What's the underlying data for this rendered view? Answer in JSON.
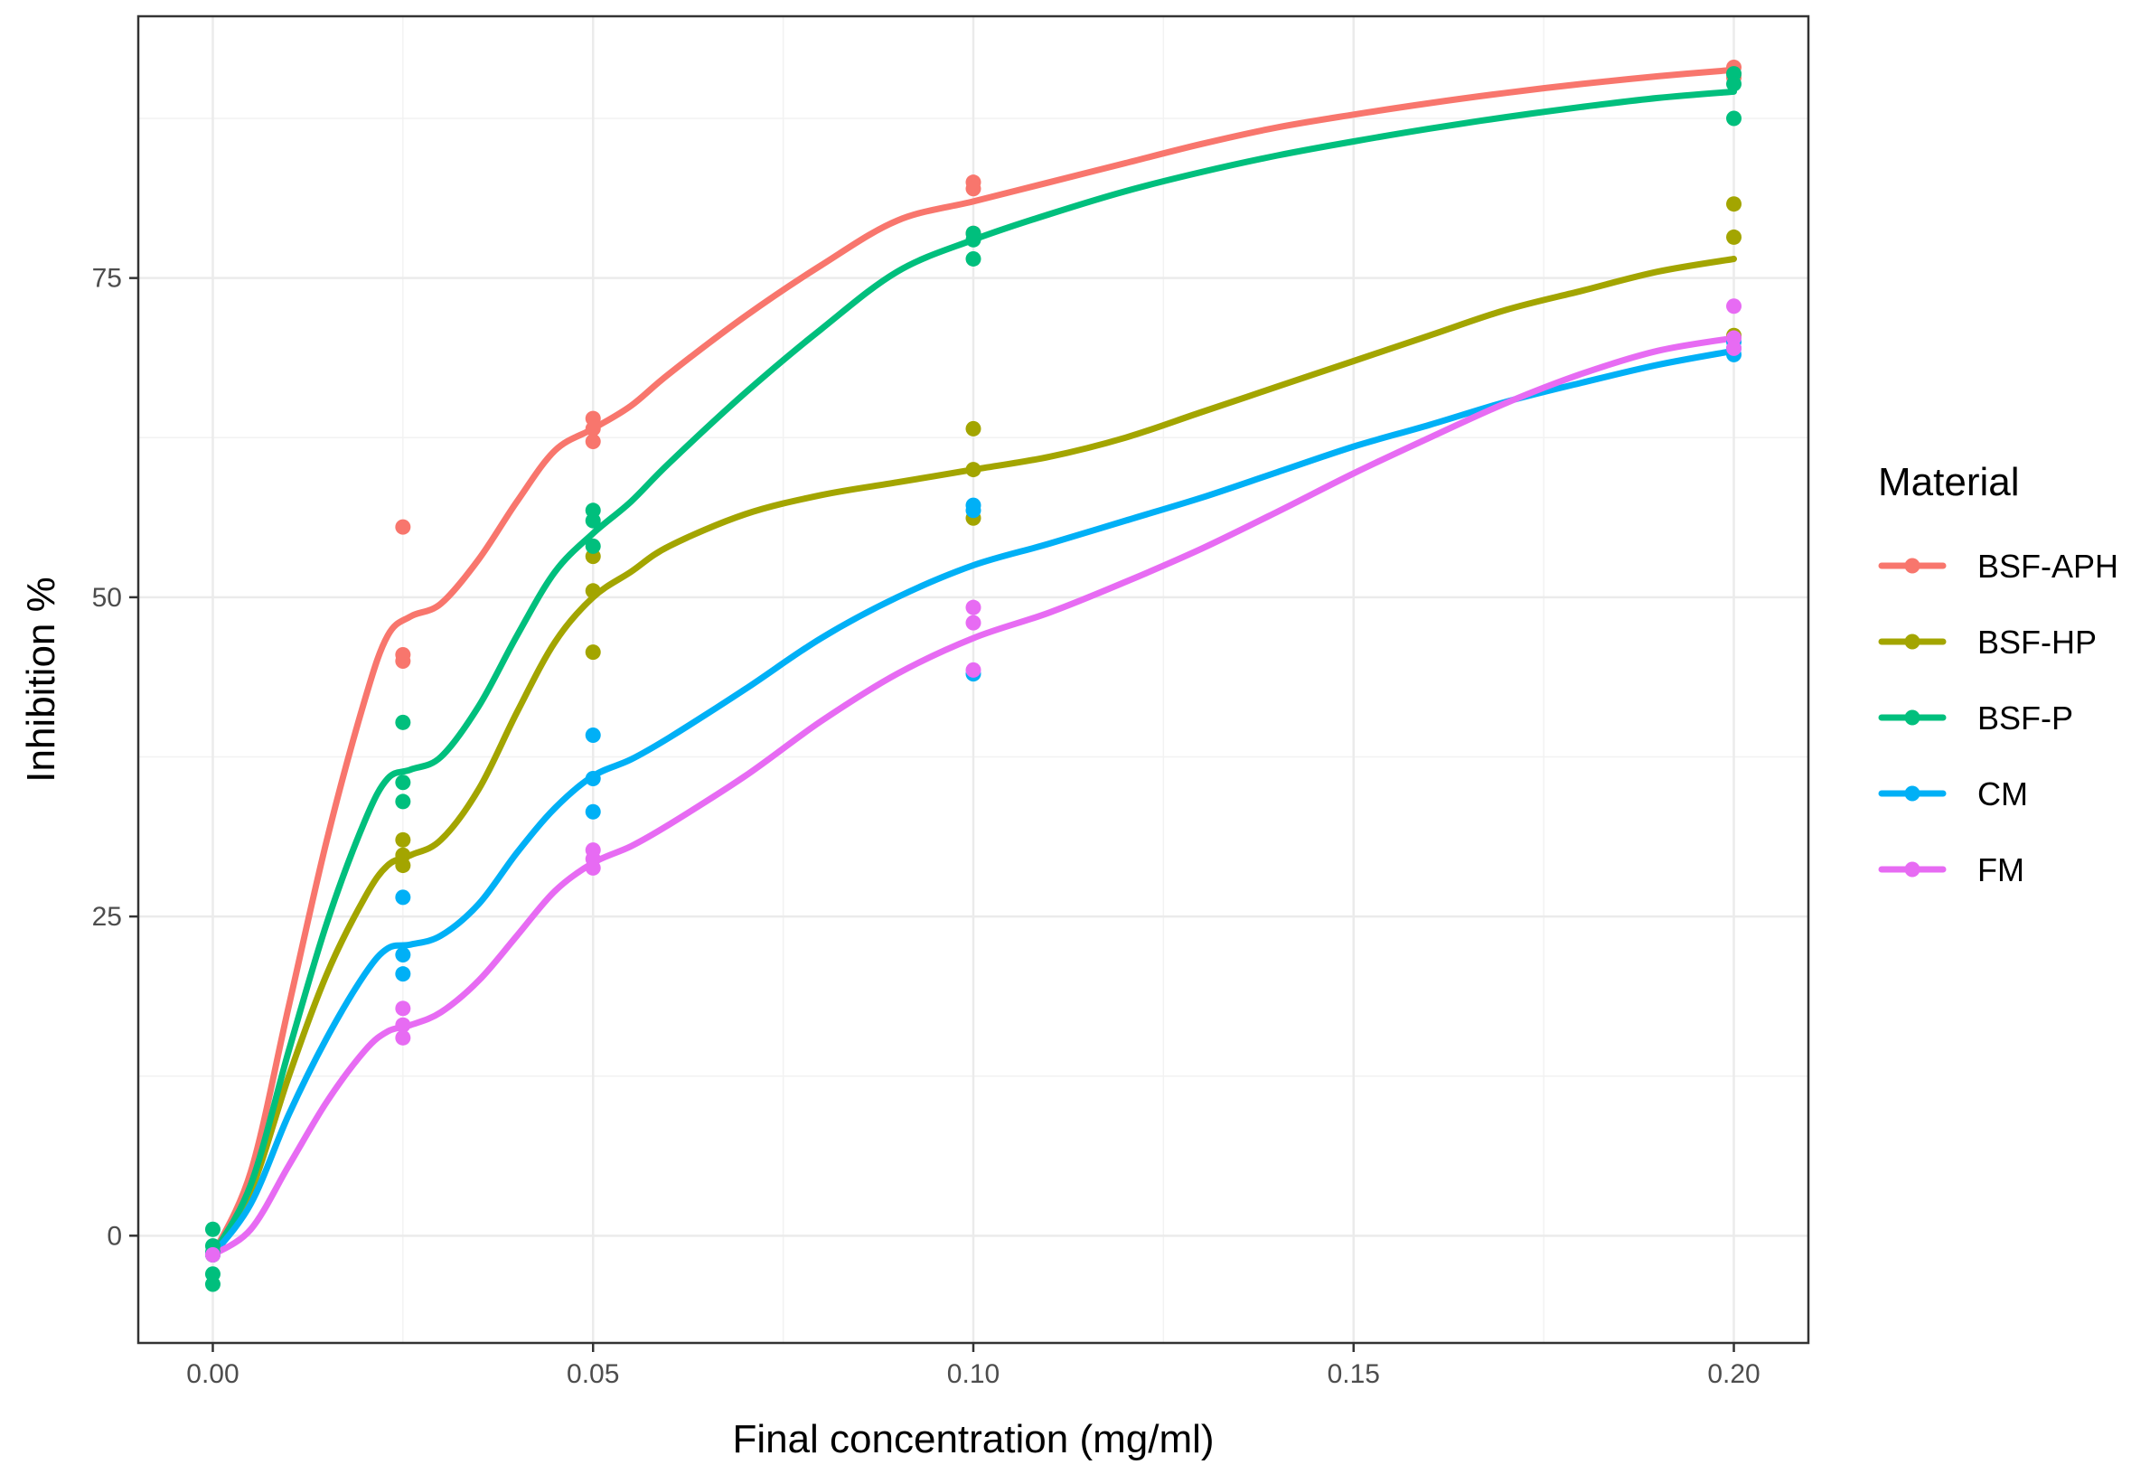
{
  "chart_data": {
    "type": "scatter",
    "title": "",
    "xlabel": "Final concentration (mg/ml)",
    "ylabel": "Inhibition %",
    "xlim": [
      -0.0098,
      0.2098
    ],
    "ylim": [
      -8.4,
      95.5
    ],
    "x_ticks": [
      0.0,
      0.05,
      0.1,
      0.15,
      0.2
    ],
    "x_tick_labels": [
      "0.00",
      "0.05",
      "0.10",
      "0.15",
      "0.20"
    ],
    "y_ticks": [
      0,
      25,
      50,
      75
    ],
    "y_tick_labels": [
      "0",
      "25",
      "50",
      "75"
    ],
    "x_minor": [
      0.025,
      0.075,
      0.125,
      0.175
    ],
    "y_minor": [
      12.5,
      37.5,
      62.5,
      87.5
    ],
    "grid": true,
    "legend": {
      "title": "Material",
      "position": "right"
    },
    "series": [
      {
        "name": "BSF-APH",
        "color": "#F8766D",
        "points": [
          [
            0,
            -1.5
          ],
          [
            0.025,
            55.5
          ],
          [
            0.025,
            45.5
          ],
          [
            0.025,
            45.0
          ],
          [
            0.05,
            64.0
          ],
          [
            0.05,
            63.2
          ],
          [
            0.05,
            62.2
          ],
          [
            0.1,
            82.5
          ],
          [
            0.1,
            82.0
          ],
          [
            0.1,
            78.5
          ],
          [
            0.2,
            91.5
          ],
          [
            0.2,
            91.0
          ],
          [
            0.2,
            90.7
          ]
        ],
        "smooth": [
          [
            0,
            -1.5
          ],
          [
            0.005,
            5.0
          ],
          [
            0.01,
            18.0
          ],
          [
            0.015,
            31.0
          ],
          [
            0.02,
            42.0
          ],
          [
            0.023,
            47.0
          ],
          [
            0.026,
            48.5
          ],
          [
            0.03,
            49.5
          ],
          [
            0.035,
            53.0
          ],
          [
            0.04,
            57.5
          ],
          [
            0.045,
            61.5
          ],
          [
            0.05,
            63.2
          ],
          [
            0.055,
            65.0
          ],
          [
            0.06,
            67.5
          ],
          [
            0.07,
            72.0
          ],
          [
            0.08,
            76.0
          ],
          [
            0.09,
            79.5
          ],
          [
            0.1,
            81.0
          ],
          [
            0.11,
            82.5
          ],
          [
            0.12,
            84.0
          ],
          [
            0.13,
            85.5
          ],
          [
            0.14,
            86.8
          ],
          [
            0.15,
            87.8
          ],
          [
            0.16,
            88.7
          ],
          [
            0.17,
            89.5
          ],
          [
            0.18,
            90.2
          ],
          [
            0.19,
            90.8
          ],
          [
            0.2,
            91.3
          ]
        ]
      },
      {
        "name": "BSF-HP",
        "color": "#A3A500",
        "points": [
          [
            0,
            -1.5
          ],
          [
            0.025,
            31.0
          ],
          [
            0.025,
            29.8
          ],
          [
            0.025,
            29.0
          ],
          [
            0.05,
            53.2
          ],
          [
            0.05,
            50.5
          ],
          [
            0.05,
            45.7
          ],
          [
            0.1,
            63.2
          ],
          [
            0.1,
            60.0
          ],
          [
            0.1,
            56.2
          ],
          [
            0.2,
            80.8
          ],
          [
            0.2,
            78.2
          ],
          [
            0.2,
            70.5
          ]
        ],
        "smooth": [
          [
            0,
            -1.5
          ],
          [
            0.005,
            3.5
          ],
          [
            0.01,
            12.5
          ],
          [
            0.015,
            20.5
          ],
          [
            0.02,
            26.5
          ],
          [
            0.023,
            29.0
          ],
          [
            0.026,
            29.8
          ],
          [
            0.03,
            31.0
          ],
          [
            0.035,
            35.0
          ],
          [
            0.04,
            41.0
          ],
          [
            0.045,
            46.5
          ],
          [
            0.05,
            50.0
          ],
          [
            0.055,
            52.0
          ],
          [
            0.06,
            54.0
          ],
          [
            0.07,
            56.5
          ],
          [
            0.08,
            58.0
          ],
          [
            0.09,
            59.0
          ],
          [
            0.1,
            60.0
          ],
          [
            0.11,
            61.0
          ],
          [
            0.12,
            62.5
          ],
          [
            0.13,
            64.5
          ],
          [
            0.14,
            66.5
          ],
          [
            0.15,
            68.5
          ],
          [
            0.16,
            70.5
          ],
          [
            0.17,
            72.5
          ],
          [
            0.18,
            74.0
          ],
          [
            0.19,
            75.5
          ],
          [
            0.2,
            76.5
          ]
        ]
      },
      {
        "name": "BSF-P",
        "color": "#00BF7D",
        "points": [
          [
            0,
            0.5
          ],
          [
            0,
            -0.8
          ],
          [
            0,
            -1.3
          ],
          [
            0,
            -3.0
          ],
          [
            0,
            -3.8
          ],
          [
            0.025,
            40.2
          ],
          [
            0.025,
            35.5
          ],
          [
            0.025,
            34.0
          ],
          [
            0.05,
            56.8
          ],
          [
            0.05,
            56.0
          ],
          [
            0.05,
            54.0
          ],
          [
            0.1,
            78.5
          ],
          [
            0.1,
            78.0
          ],
          [
            0.1,
            76.5
          ],
          [
            0.2,
            91.0
          ],
          [
            0.2,
            90.2
          ],
          [
            0.2,
            87.5
          ]
        ],
        "smooth": [
          [
            0,
            -1.5
          ],
          [
            0.005,
            4.0
          ],
          [
            0.01,
            14.5
          ],
          [
            0.015,
            24.5
          ],
          [
            0.02,
            32.5
          ],
          [
            0.023,
            35.8
          ],
          [
            0.026,
            36.5
          ],
          [
            0.03,
            37.5
          ],
          [
            0.035,
            41.5
          ],
          [
            0.04,
            47.0
          ],
          [
            0.045,
            52.0
          ],
          [
            0.05,
            55.0
          ],
          [
            0.055,
            57.5
          ],
          [
            0.06,
            60.5
          ],
          [
            0.07,
            66.0
          ],
          [
            0.08,
            71.0
          ],
          [
            0.09,
            75.5
          ],
          [
            0.1,
            78.0
          ],
          [
            0.11,
            80.0
          ],
          [
            0.12,
            81.8
          ],
          [
            0.13,
            83.3
          ],
          [
            0.14,
            84.6
          ],
          [
            0.15,
            85.7
          ],
          [
            0.16,
            86.7
          ],
          [
            0.17,
            87.6
          ],
          [
            0.18,
            88.4
          ],
          [
            0.19,
            89.1
          ],
          [
            0.2,
            89.6
          ]
        ]
      },
      {
        "name": "CM",
        "color": "#00B0F6",
        "points": [
          [
            0,
            -1.5
          ],
          [
            0.025,
            26.5
          ],
          [
            0.025,
            22.0
          ],
          [
            0.025,
            20.5
          ],
          [
            0.05,
            39.2
          ],
          [
            0.05,
            35.8
          ],
          [
            0.05,
            33.2
          ],
          [
            0.1,
            57.2
          ],
          [
            0.1,
            56.8
          ],
          [
            0.1,
            44.0
          ],
          [
            0.2,
            70.0
          ],
          [
            0.2,
            69.5
          ],
          [
            0.2,
            69.0
          ]
        ],
        "smooth": [
          [
            0,
            -1.5
          ],
          [
            0.005,
            2.5
          ],
          [
            0.01,
            9.5
          ],
          [
            0.015,
            15.5
          ],
          [
            0.02,
            20.5
          ],
          [
            0.023,
            22.5
          ],
          [
            0.026,
            22.8
          ],
          [
            0.03,
            23.5
          ],
          [
            0.035,
            26.0
          ],
          [
            0.04,
            30.0
          ],
          [
            0.045,
            33.5
          ],
          [
            0.05,
            36.0
          ],
          [
            0.055,
            37.3
          ],
          [
            0.06,
            39.0
          ],
          [
            0.07,
            42.8
          ],
          [
            0.08,
            46.8
          ],
          [
            0.09,
            50.0
          ],
          [
            0.1,
            52.5
          ],
          [
            0.11,
            54.2
          ],
          [
            0.12,
            56.0
          ],
          [
            0.13,
            57.8
          ],
          [
            0.14,
            59.8
          ],
          [
            0.15,
            61.8
          ],
          [
            0.16,
            63.5
          ],
          [
            0.17,
            65.3
          ],
          [
            0.18,
            66.8
          ],
          [
            0.19,
            68.2
          ],
          [
            0.2,
            69.3
          ]
        ]
      },
      {
        "name": "FM",
        "color": "#E76BF3",
        "points": [
          [
            0,
            -1.5
          ],
          [
            0.025,
            17.8
          ],
          [
            0.025,
            16.5
          ],
          [
            0.025,
            15.5
          ],
          [
            0.05,
            30.2
          ],
          [
            0.05,
            29.5
          ],
          [
            0.05,
            28.8
          ],
          [
            0.1,
            49.2
          ],
          [
            0.1,
            48.0
          ],
          [
            0.1,
            44.3
          ],
          [
            0.2,
            72.8
          ],
          [
            0.2,
            70.3
          ],
          [
            0.2,
            69.5
          ]
        ],
        "smooth": [
          [
            0,
            -1.5
          ],
          [
            0.005,
            0.5
          ],
          [
            0.01,
            5.5
          ],
          [
            0.015,
            10.5
          ],
          [
            0.02,
            14.5
          ],
          [
            0.023,
            16.0
          ],
          [
            0.026,
            16.5
          ],
          [
            0.03,
            17.5
          ],
          [
            0.035,
            20.0
          ],
          [
            0.04,
            23.5
          ],
          [
            0.045,
            27.0
          ],
          [
            0.05,
            29.2
          ],
          [
            0.055,
            30.5
          ],
          [
            0.06,
            32.2
          ],
          [
            0.07,
            36.0
          ],
          [
            0.08,
            40.3
          ],
          [
            0.09,
            44.0
          ],
          [
            0.1,
            46.8
          ],
          [
            0.11,
            48.8
          ],
          [
            0.12,
            51.2
          ],
          [
            0.13,
            53.8
          ],
          [
            0.14,
            56.7
          ],
          [
            0.15,
            59.7
          ],
          [
            0.16,
            62.5
          ],
          [
            0.17,
            65.2
          ],
          [
            0.18,
            67.5
          ],
          [
            0.19,
            69.3
          ],
          [
            0.2,
            70.3
          ]
        ]
      }
    ]
  }
}
